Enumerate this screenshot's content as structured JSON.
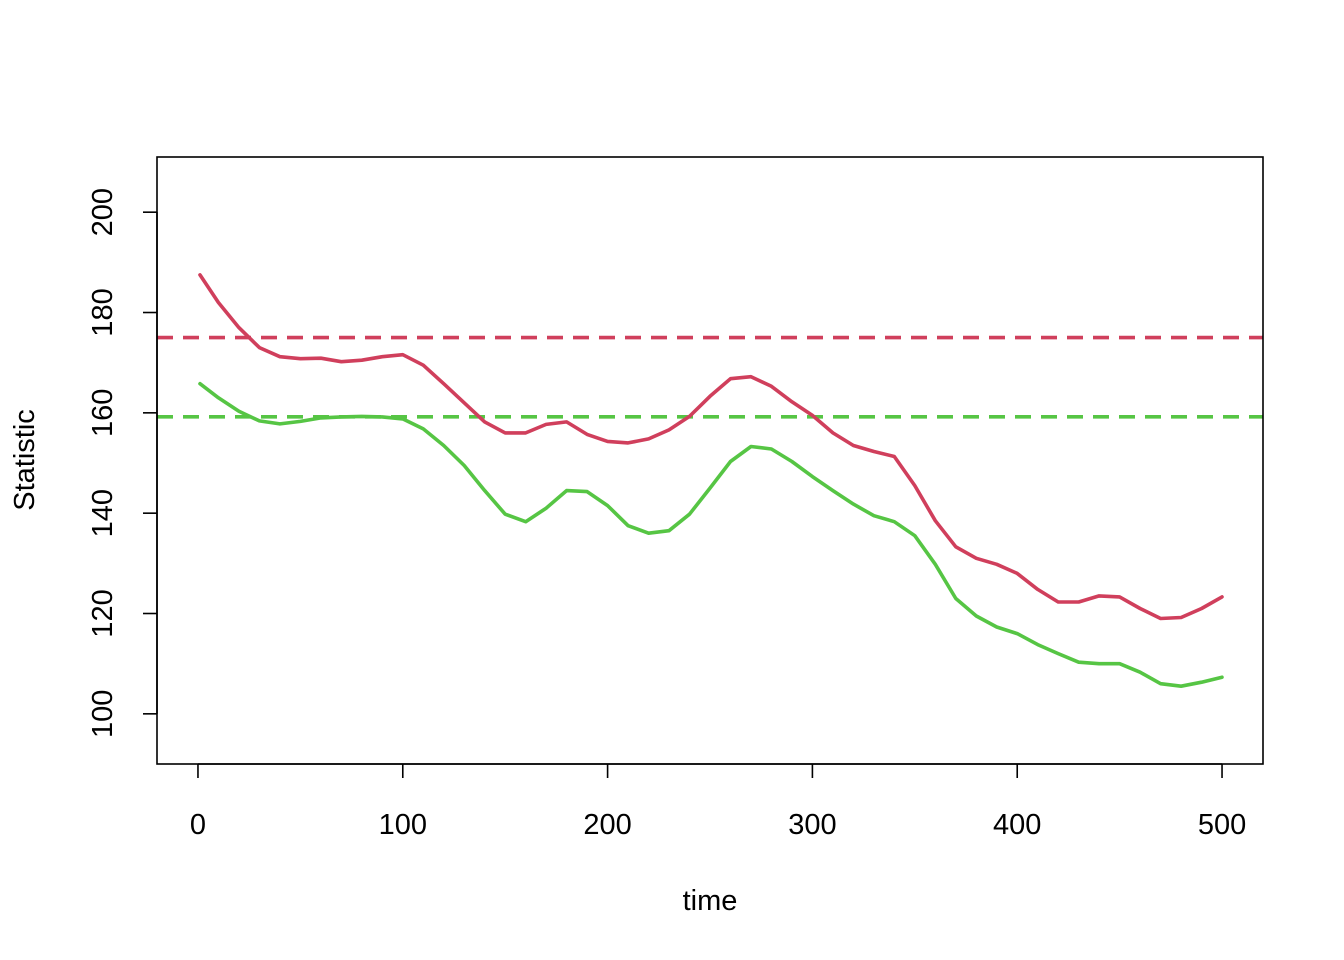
{
  "chart_data": {
    "type": "line",
    "xlabel": "time",
    "ylabel": "Statistic",
    "xlim": [
      -20,
      520
    ],
    "ylim": [
      90,
      211
    ],
    "x_ticks": [
      "0",
      "100",
      "200",
      "300",
      "400",
      "500"
    ],
    "y_ticks": [
      "100",
      "120",
      "140",
      "160",
      "180",
      "200"
    ],
    "grid": false,
    "legend": "none",
    "colors": {
      "red": "#D03F5C",
      "green": "#56C544"
    },
    "series": [
      {
        "color": "#D03F5C",
        "x": [
          1,
          10,
          20,
          30,
          40,
          50,
          60,
          70,
          80,
          90,
          100,
          110,
          120,
          130,
          140,
          150,
          160,
          170,
          180,
          190,
          200,
          210,
          220,
          230,
          240,
          250,
          260,
          270,
          280,
          290,
          300,
          310,
          320,
          330,
          340,
          350,
          360,
          370,
          380,
          390,
          400,
          410,
          420,
          430,
          440,
          450,
          460,
          470,
          480,
          490,
          500
        ],
        "y": [
          187.5,
          182,
          177,
          173,
          171.2,
          170.8,
          170.9,
          170.2,
          170.5,
          171.2,
          171.6,
          169.5,
          165.8,
          162,
          158.2,
          156,
          156,
          157.7,
          158.2,
          155.7,
          154.3,
          154,
          154.8,
          156.6,
          159.3,
          163.3,
          166.8,
          167.2,
          165.3,
          162.2,
          159.5,
          156,
          153.5,
          152.3,
          151.3,
          145.5,
          138.5,
          133.3,
          131,
          129.8,
          128,
          124.8,
          122.3,
          122.3,
          123.5,
          123.3,
          121,
          119,
          119.2,
          121,
          123.3
        ]
      },
      {
        "color": "#56C544",
        "x": [
          1,
          10,
          20,
          30,
          40,
          50,
          60,
          70,
          80,
          90,
          100,
          110,
          120,
          130,
          140,
          150,
          160,
          170,
          180,
          190,
          200,
          210,
          220,
          230,
          240,
          250,
          260,
          270,
          280,
          290,
          300,
          310,
          320,
          330,
          340,
          350,
          360,
          370,
          380,
          390,
          400,
          410,
          420,
          430,
          440,
          450,
          460,
          470,
          480,
          490,
          500
        ],
        "y": [
          165.8,
          163,
          160.3,
          158.4,
          157.8,
          158.3,
          159,
          159.2,
          159.3,
          159.2,
          158.8,
          156.8,
          153.5,
          149.5,
          144.5,
          139.8,
          138.3,
          141,
          144.5,
          144.3,
          141.5,
          137.5,
          136,
          136.5,
          139.8,
          145,
          150.3,
          153.3,
          152.8,
          150.3,
          147.3,
          144.5,
          141.8,
          139.5,
          138.3,
          135.5,
          129.8,
          123,
          119.5,
          117.3,
          116,
          113.8,
          112,
          110.3,
          110,
          110,
          108.3,
          106,
          105.5,
          106.3,
          107.3
        ]
      }
    ],
    "reference_lines": [
      {
        "y": 175,
        "color": "#D03F5C",
        "style": "dashed"
      },
      {
        "y": 159.2,
        "color": "#56C544",
        "style": "dashed"
      }
    ]
  }
}
